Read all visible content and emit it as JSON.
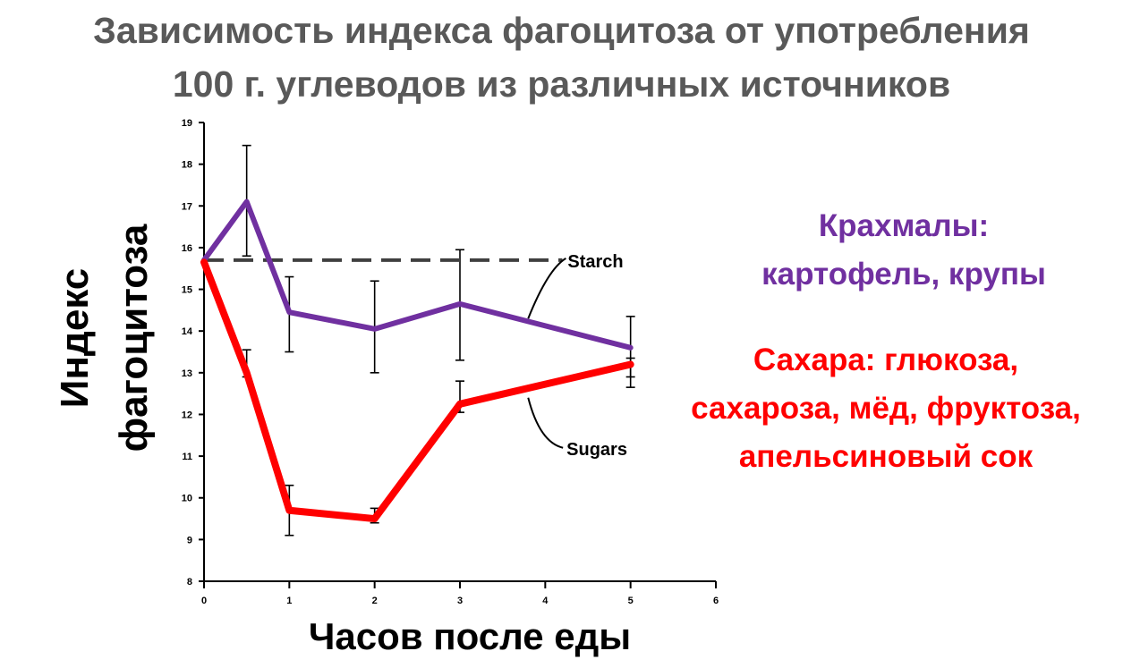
{
  "title": {
    "line1": "Зависимость индекса фагоцитоза от употребления",
    "line2": "100 г. углеводов из различных источников"
  },
  "chart_data": {
    "type": "line",
    "ylabel_line1": "Индекс",
    "ylabel_line2": "фагоцитоза",
    "xlabel": "Часов после еды",
    "xlim": [
      0,
      6
    ],
    "ylim": [
      8,
      19
    ],
    "x_ticks": [
      "0",
      "1",
      "2",
      "3",
      "4",
      "5",
      "6"
    ],
    "y_ticks": [
      "8",
      "9",
      "10",
      "11",
      "12",
      "13",
      "14",
      "15",
      "16",
      "17",
      "18",
      "19"
    ],
    "grid": false,
    "baseline": {
      "y": 15.7,
      "style": "dashed",
      "color": "#404040"
    },
    "series": [
      {
        "name": "Starch",
        "color": "#7030a0",
        "x": [
          0,
          0.5,
          1,
          2,
          3,
          5
        ],
        "y": [
          15.7,
          17.1,
          14.45,
          14.05,
          14.65,
          13.6
        ],
        "err_low": [
          null,
          15.8,
          13.5,
          13.0,
          13.3,
          12.9
        ],
        "err_high": [
          null,
          18.45,
          15.3,
          15.2,
          15.95,
          14.35
        ]
      },
      {
        "name": "Sugars",
        "color": "#ff0000",
        "x": [
          0,
          0.5,
          1,
          2,
          3,
          5
        ],
        "y": [
          15.65,
          13.0,
          9.7,
          9.5,
          12.25,
          13.2
        ],
        "err_low": [
          null,
          12.9,
          9.1,
          9.4,
          12.05,
          12.65
        ],
        "err_high": [
          null,
          13.55,
          10.3,
          9.75,
          12.8,
          13.35
        ]
      }
    ]
  },
  "annotations": {
    "starch_line1": "Крахмалы:",
    "starch_line2": "картофель, крупы",
    "sugars_line1": "Сахара: глюкоза,",
    "sugars_line2": "сахароза, мёд, фруктоза,",
    "sugars_line3": "апельсиновый сок"
  }
}
